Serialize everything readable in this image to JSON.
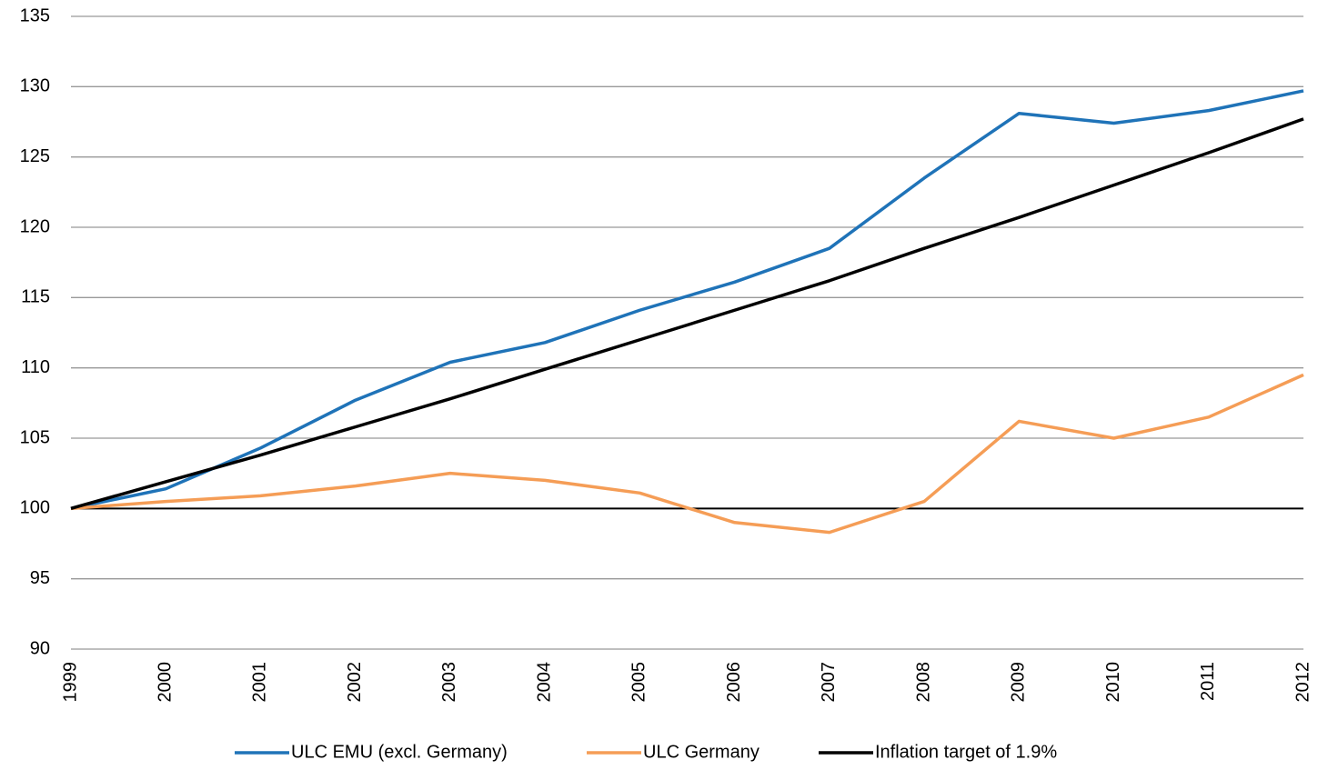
{
  "chart_data": {
    "type": "line",
    "categories": [
      "1999",
      "2000",
      "2001",
      "2002",
      "2003",
      "2004",
      "2005",
      "2006",
      "2007",
      "2008",
      "2009",
      "2010",
      "2011",
      "2012"
    ],
    "series": [
      {
        "name": "ULC EMU (excl. Germany)",
        "color": "#1f73b8",
        "values": [
          100,
          101.4,
          104.3,
          107.7,
          110.4,
          111.8,
          114.1,
          116.1,
          118.5,
          123.5,
          128.1,
          127.4,
          128.3,
          129.7
        ]
      },
      {
        "name": "ULC Germany",
        "color": "#f59d56",
        "values": [
          100,
          100.5,
          100.9,
          101.6,
          102.5,
          102.0,
          101.1,
          99.0,
          98.3,
          100.5,
          106.2,
          105.0,
          106.5,
          109.5
        ]
      },
      {
        "name": "Inflation target of 1.9%",
        "color": "#000000",
        "values": [
          100,
          101.9,
          103.8,
          105.8,
          107.8,
          109.9,
          112.0,
          114.1,
          116.2,
          118.5,
          120.7,
          123.0,
          125.3,
          127.7
        ]
      }
    ],
    "ylim": [
      90,
      135
    ],
    "yticks": [
      90,
      95,
      100,
      105,
      110,
      115,
      120,
      125,
      130,
      135
    ],
    "grid": true,
    "baseline": 100,
    "legend": "bottom"
  }
}
